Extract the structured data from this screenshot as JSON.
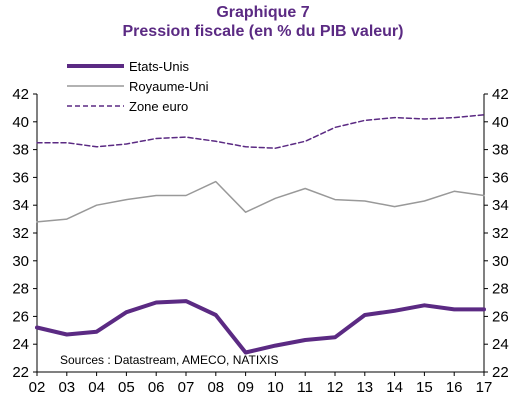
{
  "chart_data": {
    "type": "line",
    "title": "Graphique 7",
    "subtitle": "Pression fiscale (en % du PIB valeur)",
    "x": [
      "02",
      "03",
      "04",
      "05",
      "06",
      "07",
      "08",
      "09",
      "10",
      "11",
      "12",
      "13",
      "14",
      "15",
      "16",
      "17"
    ],
    "ylim": [
      22,
      42
    ],
    "yticks": [
      22,
      24,
      26,
      28,
      30,
      32,
      34,
      36,
      38,
      40,
      42
    ],
    "xlabel": "",
    "ylabel": "",
    "grid": false,
    "legend_position": "top-left",
    "source": "Sources : Datastream, AMECO, NATIXIS",
    "series": [
      {
        "name": "Etats-Unis",
        "color": "#5b2a83",
        "style": "thick",
        "values": [
          25.2,
          24.7,
          24.9,
          26.3,
          27.0,
          27.1,
          26.1,
          23.4,
          23.9,
          24.3,
          24.5,
          26.1,
          26.4,
          26.8,
          26.5,
          26.5
        ]
      },
      {
        "name": "Royaume-Uni",
        "color": "#999999",
        "style": "solid",
        "values": [
          32.8,
          33.0,
          34.0,
          34.4,
          34.7,
          34.7,
          35.7,
          33.5,
          34.5,
          35.2,
          34.4,
          34.3,
          33.9,
          34.3,
          35.0,
          34.7
        ]
      },
      {
        "name": "Zone euro",
        "color": "#5b2a83",
        "style": "dashed",
        "values": [
          38.5,
          38.5,
          38.2,
          38.4,
          38.8,
          38.9,
          38.6,
          38.2,
          38.1,
          38.6,
          39.6,
          40.1,
          40.3,
          40.2,
          40.3,
          40.5
        ]
      }
    ]
  }
}
